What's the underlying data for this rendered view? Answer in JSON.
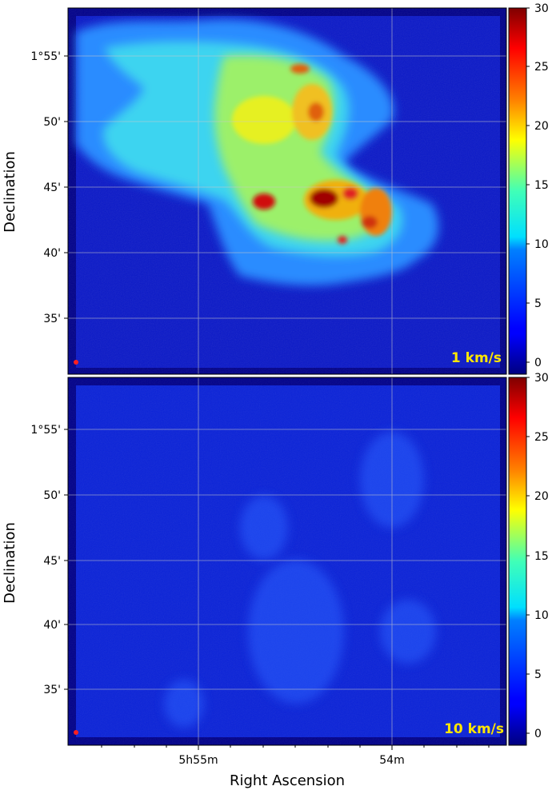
{
  "chart_data": [
    {
      "type": "heatmap",
      "panel": "top",
      "label": "1 km/s",
      "ylabel": "Declination",
      "y_ticks": [
        "1°55'",
        "50'",
        "45'",
        "40'",
        "35'"
      ],
      "colorbar": {
        "min": 0,
        "max": 30,
        "ticks": [
          "30",
          "25",
          "20",
          "15",
          "10",
          "5",
          "0"
        ],
        "colormap": "jet"
      },
      "beam_marker_color": "#ff2020"
    },
    {
      "type": "heatmap",
      "panel": "bottom",
      "label": "10 km/s",
      "ylabel": "Declination",
      "xlabel": "Right Ascension",
      "x_ticks": [
        "5h55m",
        "54m"
      ],
      "y_ticks": [
        "1°55'",
        "50'",
        "45'",
        "40'",
        "35'"
      ],
      "colorbar": {
        "min": 0,
        "max": 30,
        "ticks": [
          "30",
          "25",
          "20",
          "15",
          "10",
          "5",
          "0"
        ],
        "colormap": "jet"
      },
      "beam_marker_color": "#ff2020"
    }
  ]
}
